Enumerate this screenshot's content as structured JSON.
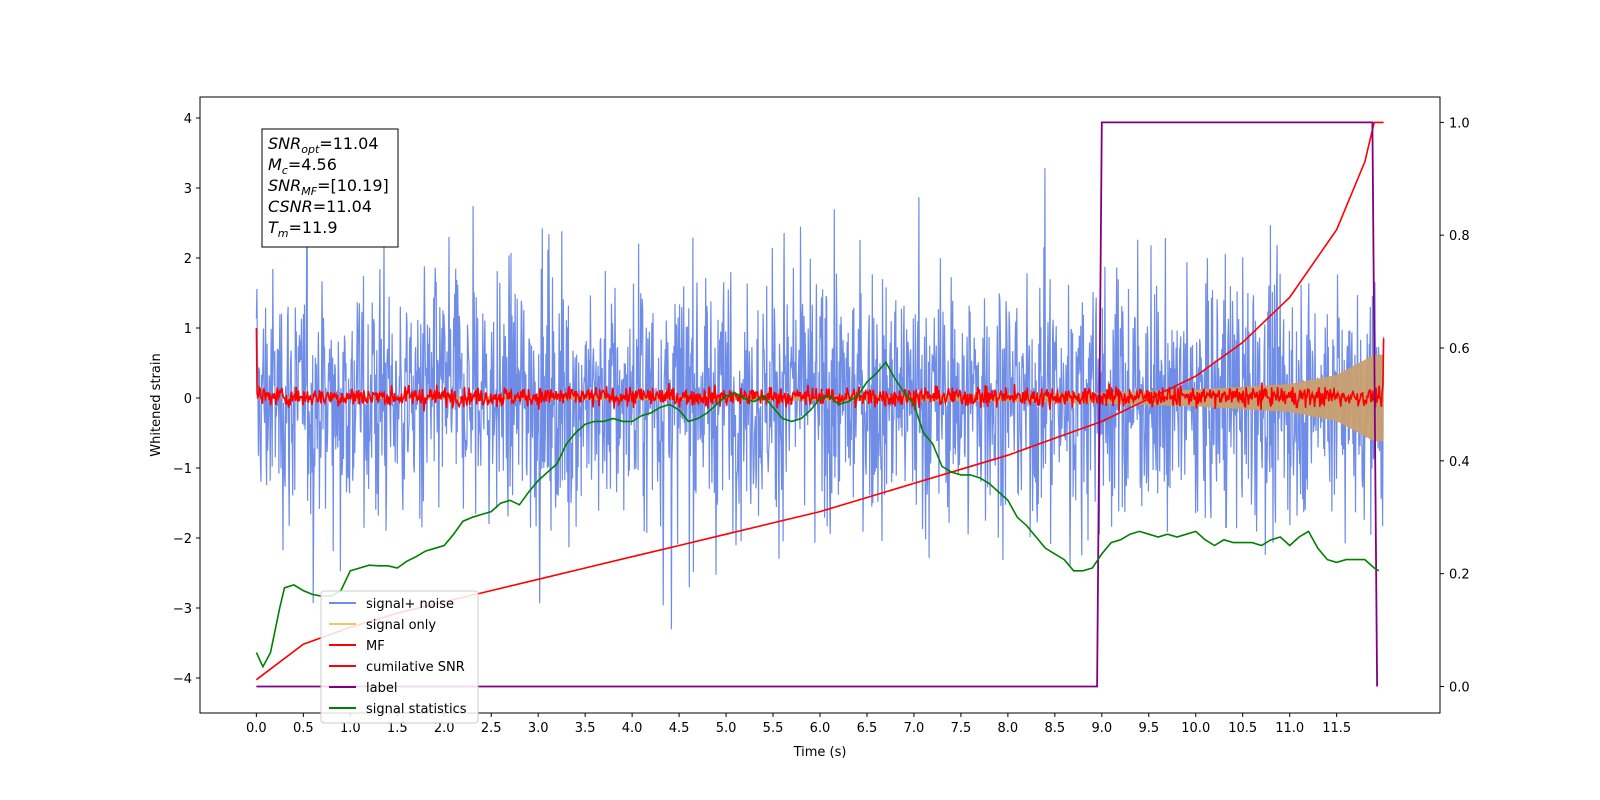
{
  "chart_data": {
    "type": "line",
    "xlabel": "Time (s)",
    "ylabel_left": "Whitened strain",
    "ylabel_right": "",
    "xlim": [
      -0.6,
      12.6
    ],
    "ylim_left": [
      -4.5,
      4.3
    ],
    "ylim_right": [
      -0.047,
      1.045
    ],
    "x_ticks": [
      0.0,
      0.5,
      1.0,
      1.5,
      2.0,
      2.5,
      3.0,
      3.5,
      4.0,
      4.5,
      5.0,
      5.5,
      6.0,
      6.5,
      7.0,
      7.5,
      8.0,
      8.5,
      9.0,
      9.5,
      10.0,
      10.5,
      11.0,
      11.5
    ],
    "x_tick_labels": [
      "0.0",
      "0.5",
      "1.0",
      "1.5",
      "2.0",
      "2.5",
      "3.0",
      "3.5",
      "4.0",
      "4.5",
      "5.0",
      "5.5",
      "6.0",
      "6.5",
      "7.0",
      "7.5",
      "8.0",
      "8.5",
      "9.0",
      "9.5",
      "10.0",
      "10.5",
      "11.0",
      "11.5"
    ],
    "y_ticks_left": [
      -4,
      -3,
      -2,
      -1,
      0,
      1,
      2,
      3,
      4
    ],
    "y_tick_labels_left": [
      "−4",
      "−3",
      "−2",
      "−1",
      "0",
      "1",
      "2",
      "3",
      "4"
    ],
    "y_ticks_right": [
      0.0,
      0.2,
      0.4,
      0.6,
      0.8,
      1.0
    ],
    "y_tick_labels_right": [
      "0.0",
      "0.2",
      "0.4",
      "0.6",
      "0.8",
      "1.0"
    ],
    "grid": false,
    "legend_position": "lower-left",
    "info_box": {
      "position": "top-left",
      "lines": [
        {
          "base": "SNR",
          "sub": "opt",
          "value": "=11.04"
        },
        {
          "base": "M",
          "sub": "c",
          "value": "=4.56"
        },
        {
          "base": "SNR",
          "sub": "MF",
          "value": "=[10.19]"
        },
        {
          "base": "CSNR",
          "sub": "",
          "value": "=11.04"
        },
        {
          "base": "T",
          "sub": "m",
          "value": "=11.9"
        }
      ]
    },
    "series": [
      {
        "name": "signal+ noise",
        "axis": "left",
        "color": "#6f8ce6",
        "kind": "noise-band",
        "x_range": [
          0.0,
          12.0
        ],
        "envelope": {
          "typical_amplitude": 1.9,
          "max_peak": 3.88,
          "min_trough": -4.15
        }
      },
      {
        "name": "signal only",
        "axis": "left",
        "color": "#f5c36b",
        "kind": "chirp",
        "x_range": [
          0.0,
          12.0
        ],
        "amplitude": [
          [
            0.0,
            0.01
          ],
          [
            8.0,
            0.05
          ],
          [
            9.0,
            0.08
          ],
          [
            10.0,
            0.12
          ],
          [
            11.0,
            0.2
          ],
          [
            11.5,
            0.33
          ],
          [
            11.9,
            0.62
          ]
        ]
      },
      {
        "name": "MF",
        "axis": "left",
        "color": "#ff0000",
        "kind": "noise-band",
        "x_range": [
          0.0,
          12.0
        ],
        "envelope": {
          "typical_amplitude": 0.13,
          "start_value": 1.0,
          "end_value": 0.85
        }
      },
      {
        "name": "cumilative SNR",
        "axis": "right",
        "color": "#ff0000",
        "kind": "line",
        "x": [
          0.0,
          0.5,
          1.0,
          1.5,
          2.0,
          2.5,
          3.0,
          3.5,
          4.0,
          4.5,
          5.0,
          5.5,
          6.0,
          6.5,
          7.0,
          7.5,
          8.0,
          8.5,
          9.0,
          9.5,
          10.0,
          10.5,
          11.0,
          11.5,
          11.8,
          11.9,
          12.0
        ],
        "y": [
          0.012,
          0.075,
          0.105,
          0.13,
          0.15,
          0.17,
          0.19,
          0.21,
          0.23,
          0.25,
          0.27,
          0.29,
          0.31,
          0.335,
          0.36,
          0.385,
          0.41,
          0.44,
          0.47,
          0.51,
          0.55,
          0.61,
          0.69,
          0.81,
          0.93,
          1.0,
          1.0
        ]
      },
      {
        "name": "label",
        "axis": "right",
        "color": "#800080",
        "kind": "line",
        "x": [
          0.0,
          8.95,
          9.0,
          11.88,
          11.93
        ],
        "y": [
          0.0,
          0.0,
          1.0,
          1.0,
          0.0
        ]
      },
      {
        "name": "signal statistics",
        "axis": "right",
        "color": "#008000",
        "kind": "line",
        "x": [
          0.0,
          0.07,
          0.15,
          0.25,
          0.3,
          0.4,
          0.5,
          0.6,
          0.7,
          0.8,
          0.9,
          1.0,
          1.1,
          1.2,
          1.3,
          1.4,
          1.5,
          1.6,
          1.7,
          1.8,
          1.9,
          2.0,
          2.1,
          2.2,
          2.3,
          2.4,
          2.5,
          2.6,
          2.7,
          2.8,
          2.9,
          3.0,
          3.1,
          3.2,
          3.3,
          3.4,
          3.5,
          3.6,
          3.7,
          3.8,
          3.9,
          4.0,
          4.1,
          4.2,
          4.3,
          4.4,
          4.5,
          4.6,
          4.7,
          4.8,
          4.9,
          5.0,
          5.1,
          5.2,
          5.3,
          5.4,
          5.5,
          5.6,
          5.7,
          5.8,
          5.9,
          6.0,
          6.1,
          6.2,
          6.3,
          6.4,
          6.5,
          6.6,
          6.7,
          6.8,
          6.9,
          7.0,
          7.1,
          7.2,
          7.3,
          7.4,
          7.5,
          7.6,
          7.7,
          7.8,
          7.9,
          8.0,
          8.1,
          8.2,
          8.3,
          8.4,
          8.5,
          8.6,
          8.7,
          8.8,
          8.9,
          9.0,
          9.1,
          9.2,
          9.3,
          9.4,
          9.5,
          9.6,
          9.7,
          9.8,
          9.9,
          10.0,
          10.1,
          10.2,
          10.3,
          10.4,
          10.5,
          10.6,
          10.7,
          10.8,
          10.9,
          11.0,
          11.1,
          11.2,
          11.3,
          11.4,
          11.5,
          11.6,
          11.7,
          11.8,
          11.9,
          11.95
        ],
        "y": [
          0.06,
          0.035,
          0.06,
          0.14,
          0.175,
          0.18,
          0.17,
          0.163,
          0.16,
          0.16,
          0.17,
          0.205,
          0.21,
          0.215,
          0.214,
          0.214,
          0.21,
          0.222,
          0.23,
          0.24,
          0.245,
          0.25,
          0.27,
          0.293,
          0.3,
          0.305,
          0.31,
          0.325,
          0.33,
          0.322,
          0.345,
          0.365,
          0.38,
          0.395,
          0.43,
          0.45,
          0.465,
          0.47,
          0.47,
          0.475,
          0.47,
          0.47,
          0.48,
          0.485,
          0.495,
          0.5,
          0.49,
          0.47,
          0.475,
          0.485,
          0.5,
          0.515,
          0.52,
          0.51,
          0.505,
          0.515,
          0.495,
          0.475,
          0.47,
          0.475,
          0.49,
          0.51,
          0.515,
          0.5,
          0.505,
          0.515,
          0.54,
          0.555,
          0.575,
          0.545,
          0.52,
          0.5,
          0.45,
          0.43,
          0.39,
          0.38,
          0.375,
          0.375,
          0.37,
          0.36,
          0.345,
          0.33,
          0.3,
          0.285,
          0.265,
          0.245,
          0.235,
          0.225,
          0.205,
          0.205,
          0.21,
          0.235,
          0.255,
          0.26,
          0.27,
          0.275,
          0.27,
          0.265,
          0.27,
          0.265,
          0.27,
          0.275,
          0.26,
          0.25,
          0.26,
          0.255,
          0.255,
          0.255,
          0.25,
          0.26,
          0.265,
          0.25,
          0.265,
          0.275,
          0.245,
          0.225,
          0.22,
          0.225,
          0.225,
          0.225,
          0.21,
          0.205
        ]
      }
    ]
  }
}
